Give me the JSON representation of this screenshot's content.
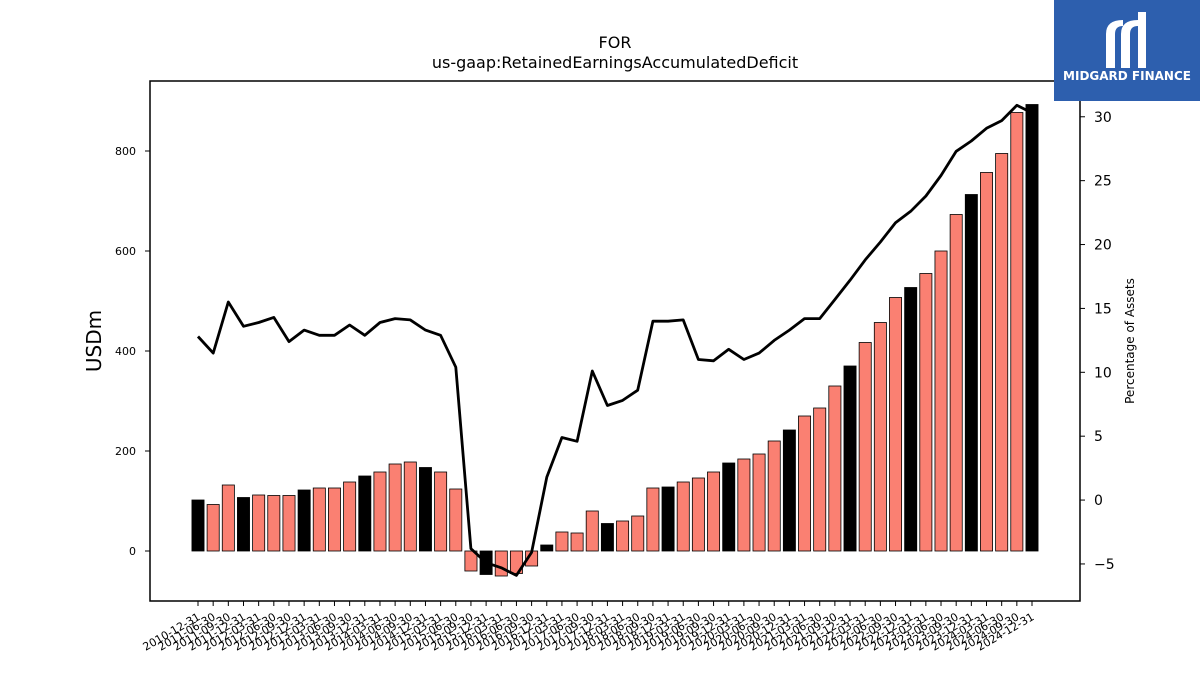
{
  "chart_data": {
    "type": "bar",
    "title": "FOR",
    "subtitle": "us-gaap:RetainedEarningsAccumulatedDeficit",
    "ylabel": "USDm",
    "y2label": "Percentage of Assets",
    "ylim": [
      -100,
      940
    ],
    "y2lim": [
      -7.9,
      32.8
    ],
    "yticks": [
      0,
      200,
      400,
      600,
      800
    ],
    "y2ticks": [
      -5,
      0,
      5,
      10,
      15,
      20,
      25,
      30
    ],
    "categories": [
      "2010-12-31",
      "2011-06-30",
      "2011-09-30",
      "2011-12-31",
      "2012-03-31",
      "2012-06-30",
      "2012-09-30",
      "2012-12-31",
      "2013-03-31",
      "2013-06-30",
      "2013-09-30",
      "2013-12-31",
      "2014-03-31",
      "2014-06-30",
      "2014-09-30",
      "2014-12-31",
      "2015-03-31",
      "2015-06-30",
      "2015-09-30",
      "2015-12-31",
      "2016-03-31",
      "2016-06-30",
      "2016-09-30",
      "2016-12-31",
      "2017-03-31",
      "2017-06-30",
      "2017-09-30",
      "2017-12-31",
      "2018-03-31",
      "2018-06-30",
      "2018-09-30",
      "2018-12-31",
      "2019-03-31",
      "2019-06-30",
      "2019-09-30",
      "2019-12-31",
      "2020-03-31",
      "2020-06-30",
      "2020-09-30",
      "2020-12-31",
      "2021-03-31",
      "2021-06-30",
      "2021-09-30",
      "2021-12-31",
      "2022-03-31",
      "2022-06-30",
      "2022-09-30",
      "2022-12-31",
      "2023-03-31",
      "2023-06-30",
      "2023-09-30",
      "2023-12-31",
      "2024-03-31",
      "2024-06-30",
      "2024-09-30",
      "2024-12-31"
    ],
    "series": [
      {
        "type": "bar",
        "values": [
          102,
          93,
          132,
          107,
          112,
          111,
          111,
          122,
          126,
          126,
          138,
          150,
          158,
          174,
          178,
          167,
          158,
          124,
          -40,
          -47,
          -50,
          -45,
          -30,
          12,
          38,
          36,
          80,
          55,
          60,
          70,
          126,
          128,
          138,
          146,
          158,
          176,
          184,
          194,
          220,
          242,
          270,
          286,
          330,
          370,
          417,
          457,
          507,
          527,
          555,
          600,
          673,
          713,
          757,
          795,
          877,
          893
        ],
        "colors": [
          "#000000",
          "#fa8072",
          "#fa8072",
          "#000000",
          "#fa8072",
          "#fa8072",
          "#fa8072",
          "#000000",
          "#fa8072",
          "#fa8072",
          "#fa8072",
          "#000000",
          "#fa8072",
          "#fa8072",
          "#fa8072",
          "#000000",
          "#fa8072",
          "#fa8072",
          "#fa8072",
          "#000000",
          "#fa8072",
          "#fa8072",
          "#fa8072",
          "#000000",
          "#fa8072",
          "#fa8072",
          "#fa8072",
          "#000000",
          "#fa8072",
          "#fa8072",
          "#fa8072",
          "#000000",
          "#fa8072",
          "#fa8072",
          "#fa8072",
          "#000000",
          "#fa8072",
          "#fa8072",
          "#fa8072",
          "#000000",
          "#fa8072",
          "#fa8072",
          "#fa8072",
          "#000000",
          "#fa8072",
          "#fa8072",
          "#fa8072",
          "#000000",
          "#fa8072",
          "#fa8072",
          "#fa8072",
          "#000000",
          "#fa8072",
          "#fa8072",
          "#fa8072",
          "#000000"
        ]
      },
      {
        "type": "line",
        "axis": "right",
        "color": "#000000",
        "values": [
          12.8,
          11.5,
          15.5,
          13.6,
          13.9,
          14.3,
          12.4,
          13.3,
          12.9,
          12.9,
          13.7,
          12.9,
          13.9,
          14.2,
          14.1,
          13.3,
          12.9,
          10.4,
          -3.8,
          -4.9,
          -5.3,
          -5.9,
          -4.1,
          1.8,
          4.9,
          4.6,
          10.1,
          7.4,
          7.8,
          8.6,
          14.0,
          14.0,
          14.1,
          11.0,
          10.9,
          11.8,
          11.0,
          11.5,
          12.5,
          13.3,
          14.2,
          14.2,
          15.7,
          17.2,
          18.8,
          20.2,
          21.7,
          22.6,
          23.8,
          25.4,
          27.3,
          28.1,
          29.1,
          29.7,
          30.9,
          30.3
        ]
      }
    ],
    "legend": "none",
    "grid": false
  },
  "logo": {
    "text": "MIDGARD FINANCE",
    "color": "#2d5fae"
  }
}
